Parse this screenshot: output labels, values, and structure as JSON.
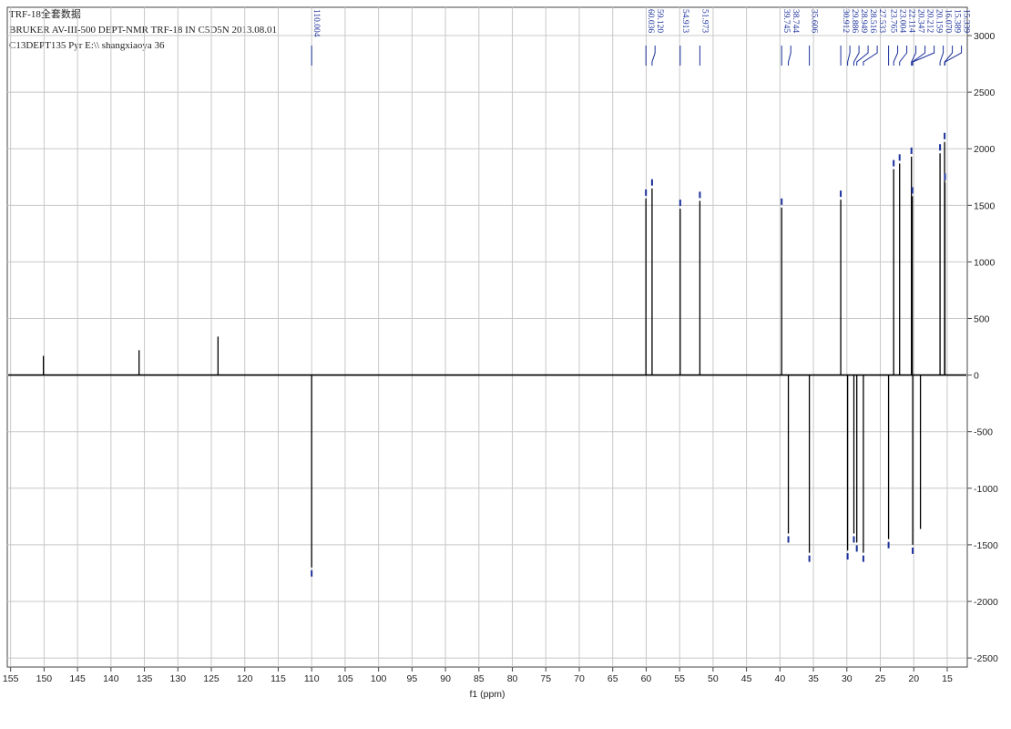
{
  "chart_data": {
    "type": "spectrum",
    "title_lines": [
      "TRF-18全套数据",
      "BRUKER AV-III-500 DEPT-NMR TRF-18 IN C5D5N 2013.08.01",
      "C13DEPT135 Pyr E:\\\\ shangxiaoya 36"
    ],
    "x_label": "f1 (ppm)",
    "x": [
      110.004,
      60.036,
      59.12,
      54.913,
      51.973,
      39.745,
      38.744,
      35.606,
      30.912,
      29.886,
      28.949,
      28.516,
      27.533,
      23.765,
      23.004,
      22.114,
      20.347,
      20.212,
      20.159,
      16.07,
      15.389,
      15.339
    ],
    "x_labels": [
      "110.004",
      "60.036",
      "59.120",
      "54.913",
      "51.973",
      "39.745",
      "38.744",
      "35.606",
      "30.912",
      "29.886",
      "28.949",
      "28.516",
      "27.533",
      "23.765",
      "23.004",
      "22.114",
      "20.347",
      "20.212",
      "20.159",
      "16.070",
      "15.389",
      "15.339"
    ],
    "values": [
      -1700,
      1560,
      1650,
      1470,
      1540,
      1480,
      -1400,
      -1570,
      1550,
      -1550,
      -1400,
      -1480,
      -1570,
      -1450,
      1820,
      1870,
      1930,
      1580,
      -1500,
      1960,
      2060,
      1700
    ],
    "minor_peaks": {
      "x": [
        150.1,
        135.8,
        124.0,
        19.0
      ],
      "values": [
        170,
        220,
        340,
        -1360
      ]
    },
    "color": "#000000",
    "label_color": "#1a2f9a",
    "grid_color": "#c8c8c8",
    "xlim": [
      155.5,
      12
    ],
    "xticks": [
      155,
      150,
      145,
      140,
      135,
      130,
      125,
      120,
      115,
      110,
      105,
      100,
      95,
      90,
      85,
      80,
      75,
      70,
      65,
      60,
      55,
      50,
      45,
      40,
      35,
      30,
      25,
      20,
      15
    ],
    "ylim": [
      -2580,
      3250
    ],
    "yticks": [
      -2500,
      -2000,
      -1500,
      -1000,
      -500,
      0,
      500,
      1000,
      1500,
      2000,
      2500,
      3000
    ],
    "grid": true
  }
}
